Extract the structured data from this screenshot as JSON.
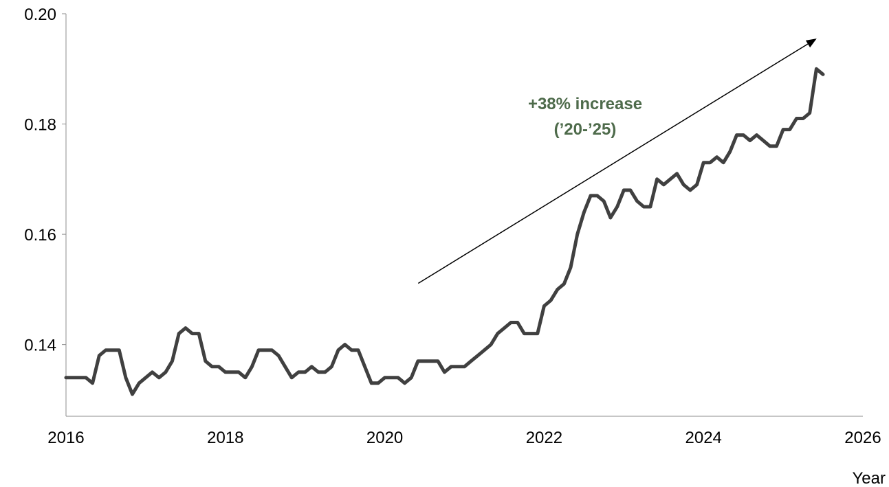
{
  "chart_data": {
    "type": "line",
    "title": "",
    "xlabel": "Year",
    "ylabel": "",
    "xlim": [
      2016,
      2026
    ],
    "ylim": [
      0.127,
      0.2
    ],
    "x_ticks": [
      2016,
      2018,
      2020,
      2022,
      2024,
      2026
    ],
    "y_ticks": [
      0.14,
      0.16,
      0.18,
      0.2
    ],
    "x_tick_labels": [
      "2016",
      "2018",
      "2020",
      "2022",
      "2024",
      "2026"
    ],
    "y_tick_labels": [
      "0.14",
      "0.16",
      "0.18",
      "0.20"
    ],
    "grid": false,
    "legend": "none",
    "colors": {
      "line": "#404040",
      "annotation": "#4e6b4b",
      "arrow": "#000000"
    },
    "annotation": {
      "line1": "+38% increase",
      "line2": "(’20-’25)",
      "arrow_start": [
        2020.42,
        0.1511
      ],
      "arrow_end": [
        2025.42,
        0.1955
      ]
    },
    "series": [
      {
        "x": [
          2016.0,
          2016.083,
          2016.167,
          2016.25,
          2016.333,
          2016.417,
          2016.5,
          2016.583,
          2016.667,
          2016.75,
          2016.833,
          2016.917,
          2017.0,
          2017.083,
          2017.167,
          2017.25,
          2017.333,
          2017.417,
          2017.5,
          2017.583,
          2017.667,
          2017.75,
          2017.833,
          2017.917,
          2018.0,
          2018.083,
          2018.167,
          2018.25,
          2018.333,
          2018.417,
          2018.5,
          2018.583,
          2018.667,
          2018.75,
          2018.833,
          2018.917,
          2019.0,
          2019.083,
          2019.167,
          2019.25,
          2019.333,
          2019.417,
          2019.5,
          2019.583,
          2019.667,
          2019.75,
          2019.833,
          2019.917,
          2020.0,
          2020.083,
          2020.167,
          2020.25,
          2020.333,
          2020.417,
          2020.5,
          2020.583,
          2020.667,
          2020.75,
          2020.833,
          2020.917,
          2021.0,
          2021.083,
          2021.167,
          2021.25,
          2021.333,
          2021.417,
          2021.5,
          2021.583,
          2021.667,
          2021.75,
          2021.833,
          2021.917,
          2022.0,
          2022.083,
          2022.167,
          2022.25,
          2022.333,
          2022.417,
          2022.5,
          2022.583,
          2022.667,
          2022.75,
          2022.833,
          2022.917,
          2023.0,
          2023.083,
          2023.167,
          2023.25,
          2023.333,
          2023.417,
          2023.5,
          2023.583,
          2023.667,
          2023.75,
          2023.833,
          2023.917,
          2024.0,
          2024.083,
          2024.167,
          2024.25,
          2024.333,
          2024.417,
          2024.5,
          2024.583,
          2024.667,
          2024.75,
          2024.833,
          2024.917,
          2025.0,
          2025.083,
          2025.167,
          2025.25,
          2025.333,
          2025.417,
          2025.5
        ],
        "y": [
          0.134,
          0.134,
          0.134,
          0.134,
          0.133,
          0.138,
          0.139,
          0.139,
          0.139,
          0.134,
          0.131,
          0.133,
          0.134,
          0.135,
          0.134,
          0.135,
          0.137,
          0.142,
          0.143,
          0.142,
          0.142,
          0.137,
          0.136,
          0.136,
          0.135,
          0.135,
          0.135,
          0.134,
          0.136,
          0.139,
          0.139,
          0.139,
          0.138,
          0.136,
          0.134,
          0.135,
          0.135,
          0.136,
          0.135,
          0.135,
          0.136,
          0.139,
          0.14,
          0.139,
          0.139,
          0.136,
          0.133,
          0.133,
          0.134,
          0.134,
          0.134,
          0.133,
          0.134,
          0.137,
          0.137,
          0.137,
          0.137,
          0.135,
          0.136,
          0.136,
          0.136,
          0.137,
          0.138,
          0.139,
          0.14,
          0.142,
          0.143,
          0.144,
          0.144,
          0.142,
          0.142,
          0.142,
          0.147,
          0.148,
          0.15,
          0.151,
          0.154,
          0.16,
          0.164,
          0.167,
          0.167,
          0.166,
          0.163,
          0.165,
          0.168,
          0.168,
          0.166,
          0.165,
          0.165,
          0.17,
          0.169,
          0.17,
          0.171,
          0.169,
          0.168,
          0.169,
          0.173,
          0.173,
          0.174,
          0.173,
          0.175,
          0.178,
          0.178,
          0.177,
          0.178,
          0.177,
          0.176,
          0.176,
          0.179,
          0.179,
          0.181,
          0.181,
          0.182,
          0.19,
          0.189
        ]
      }
    ]
  }
}
